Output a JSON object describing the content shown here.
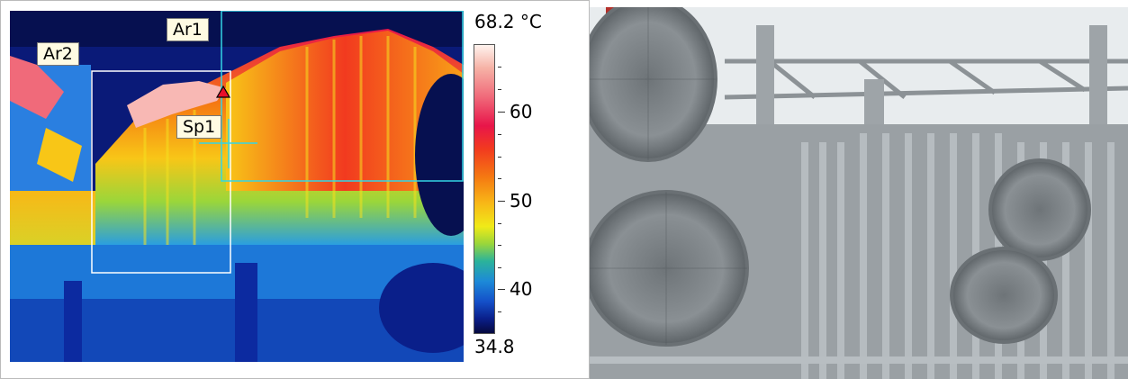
{
  "thermal": {
    "labels": {
      "ar1": "Ar1",
      "ar2": "Ar2",
      "sp1": "Sp1"
    },
    "scale": {
      "max_label": "68.2 °C",
      "min_label": "34.8",
      "ticks": [
        "60",
        "50",
        "40"
      ]
    }
  },
  "photo": {
    "icon": "transformer-photo"
  }
}
